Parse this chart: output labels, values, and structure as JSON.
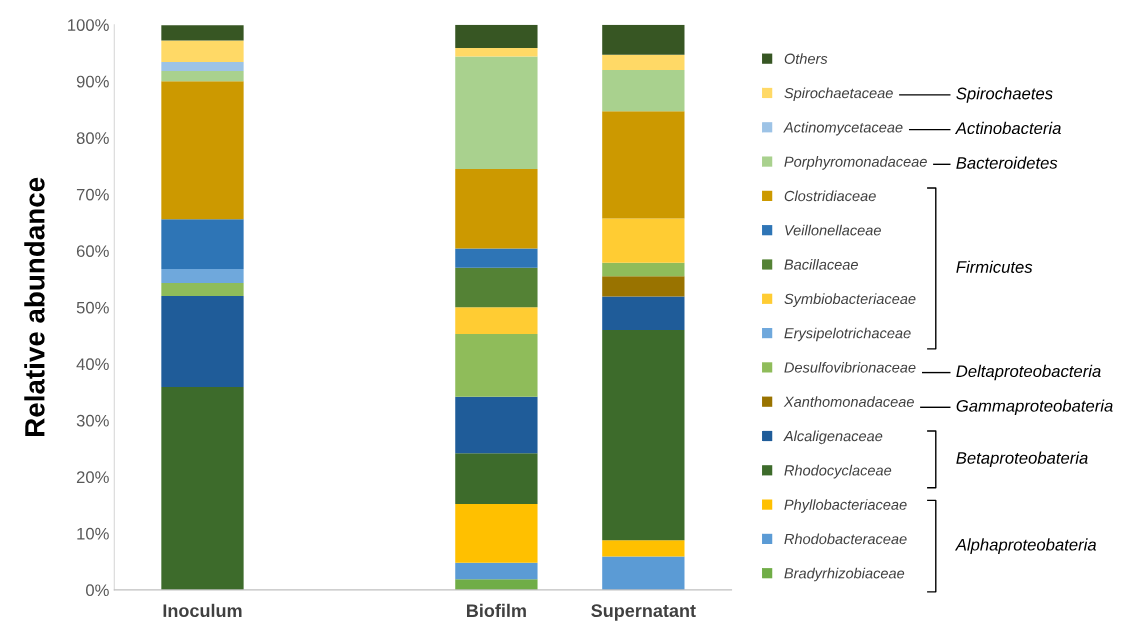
{
  "chart_data": {
    "type": "bar",
    "stacked": true,
    "ylabel": "Relative abundance",
    "categories": [
      "Inoculum",
      null,
      "Biofilm",
      "Supernatant"
    ],
    "ylim": [
      0,
      100
    ],
    "yticks": [
      {
        "value": 0,
        "label": "0%"
      },
      {
        "value": 10,
        "label": "10%"
      },
      {
        "value": 20,
        "label": "20%"
      },
      {
        "value": 30,
        "label": "30%"
      },
      {
        "value": 40,
        "label": "40%"
      },
      {
        "value": 50,
        "label": "50%"
      },
      {
        "value": 60,
        "label": "60%"
      },
      {
        "value": 70,
        "label": "70%"
      },
      {
        "value": 80,
        "label": "80%"
      },
      {
        "value": 90,
        "label": "90%"
      },
      {
        "value": 100,
        "label": "100%"
      }
    ],
    "grid": false,
    "legend": "right",
    "series": [
      {
        "name": "Bradyrhizobiaceae",
        "color": "#70ad47",
        "values": [
          null,
          null,
          1.9,
          null
        ]
      },
      {
        "name": "Rhodobacteraceae",
        "color": "#5b9bd5",
        "values": [
          null,
          null,
          2.9,
          5.9
        ]
      },
      {
        "name": "Phyllobacteriaceae",
        "color": "#ffc000",
        "values": [
          null,
          null,
          10.4,
          2.9
        ]
      },
      {
        "name": "Rhodocyclaceae",
        "color": "#3d6b2b",
        "values": [
          35.9,
          null,
          9.0,
          37.2
        ]
      },
      {
        "name": "Alcaligenaceae",
        "color": "#1f5c99",
        "values": [
          16.1,
          null,
          10.0,
          5.9
        ]
      },
      {
        "name": "Xanthomonadaceae",
        "color": "#997300",
        "values": [
          null,
          null,
          null,
          3.6
        ]
      },
      {
        "name": "Desulfovibrionaceae",
        "color": "#8fbc5a",
        "values": [
          2.3,
          null,
          11.1,
          2.4
        ]
      },
      {
        "name": "Erysipelotrichaceae",
        "color": "#6fa8dc",
        "values": [
          2.5,
          null,
          null,
          null
        ]
      },
      {
        "name": "Symbiobacteriaceae",
        "color": "#ffcc33",
        "values": [
          null,
          null,
          4.7,
          7.8
        ]
      },
      {
        "name": "Bacillaceae",
        "color": "#548235",
        "values": [
          null,
          null,
          7.0,
          null
        ]
      },
      {
        "name": "Veillonellaceae",
        "color": "#2e75b6",
        "values": [
          8.8,
          null,
          3.4,
          null
        ]
      },
      {
        "name": "Clostridiaceae",
        "color": "#cc9900",
        "values": [
          24.4,
          null,
          14.1,
          19.0
        ]
      },
      {
        "name": "Porphyromonadaceae",
        "color": "#a9d18e",
        "values": [
          1.8,
          null,
          19.9,
          7.3
        ]
      },
      {
        "name": "Actinomycetaceae",
        "color": "#9dc3e6",
        "values": [
          1.6,
          null,
          null,
          null
        ]
      },
      {
        "name": "Spirochaetaceae",
        "color": "#ffd966",
        "values": [
          3.8,
          null,
          1.5,
          2.7
        ]
      },
      {
        "name": "Others",
        "color": "#375623",
        "values": [
          2.7,
          null,
          4.1,
          5.3
        ]
      }
    ],
    "annotations": [
      "Spirochaetes",
      "Actinobacteria",
      "Bacteroidetes",
      "Firmicutes",
      "Deltaproteobacteria",
      "Gammaproteobateria",
      "Betaproteobateria",
      "Alphaproteobateria"
    ]
  }
}
